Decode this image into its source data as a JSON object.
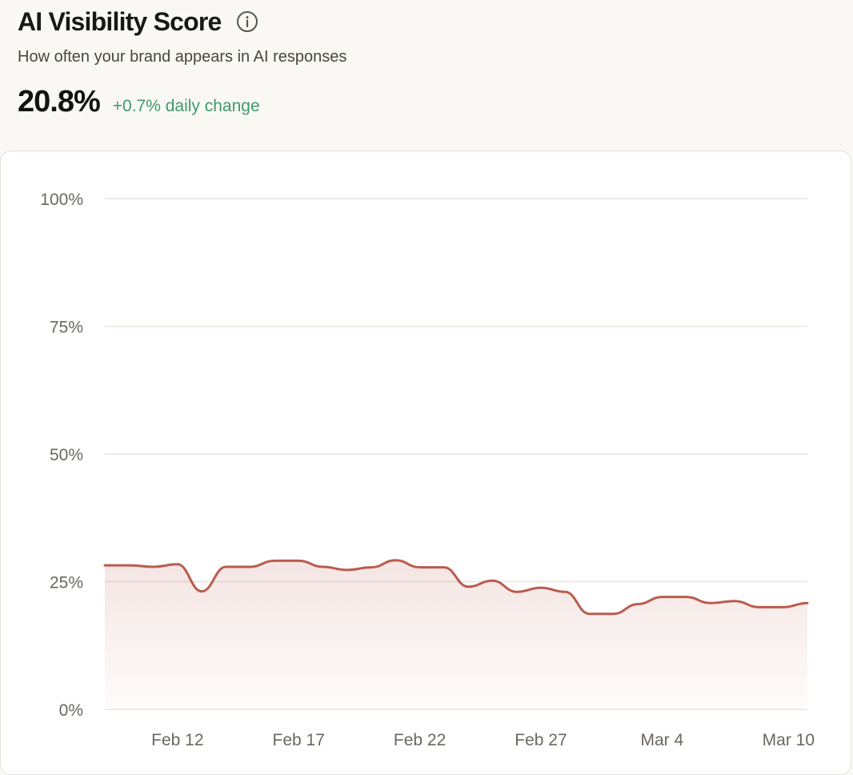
{
  "header": {
    "title": "AI Visibility Score",
    "info_icon": "info-circle-icon",
    "subtitle": "How often your brand appears in AI responses",
    "value": "20.8%",
    "change": "+0.7% daily change"
  },
  "colors": {
    "line": "#b95c4e",
    "change_positive": "#3f9a6c",
    "grid": "#e8e4de"
  },
  "chart_data": {
    "type": "area",
    "title": "",
    "xlabel": "",
    "ylabel": "",
    "ylim": [
      0,
      100
    ],
    "yticks": [
      "0%",
      "25%",
      "50%",
      "75%",
      "100%"
    ],
    "xticks": [
      "Feb 12",
      "Feb 17",
      "Feb 22",
      "Feb 27",
      "Mar 4",
      "Mar 10"
    ],
    "x": [
      "Feb 9",
      "Feb 10",
      "Feb 11",
      "Feb 12",
      "Feb 13",
      "Feb 14",
      "Feb 15",
      "Feb 16",
      "Feb 17",
      "Feb 18",
      "Feb 19",
      "Feb 20",
      "Feb 21",
      "Feb 22",
      "Feb 23",
      "Feb 24",
      "Feb 25",
      "Feb 26",
      "Feb 27",
      "Feb 28",
      "Mar 1",
      "Mar 2",
      "Mar 3",
      "Mar 4",
      "Mar 5",
      "Mar 6",
      "Mar 7",
      "Mar 8",
      "Mar 9",
      "Mar 10"
    ],
    "series": [
      {
        "values": [
          28.2,
          28.2,
          27.9,
          28.4,
          23.1,
          27.9,
          27.9,
          29.1,
          29.1,
          27.9,
          27.3,
          27.8,
          29.2,
          27.8,
          27.8,
          24.0,
          25.2,
          23.0,
          23.8,
          23.0,
          18.7,
          18.7,
          20.6,
          22.0,
          22.0,
          20.8,
          21.2,
          20.0,
          20.0,
          20.8
        ]
      }
    ],
    "grid": true,
    "legend": "none"
  }
}
